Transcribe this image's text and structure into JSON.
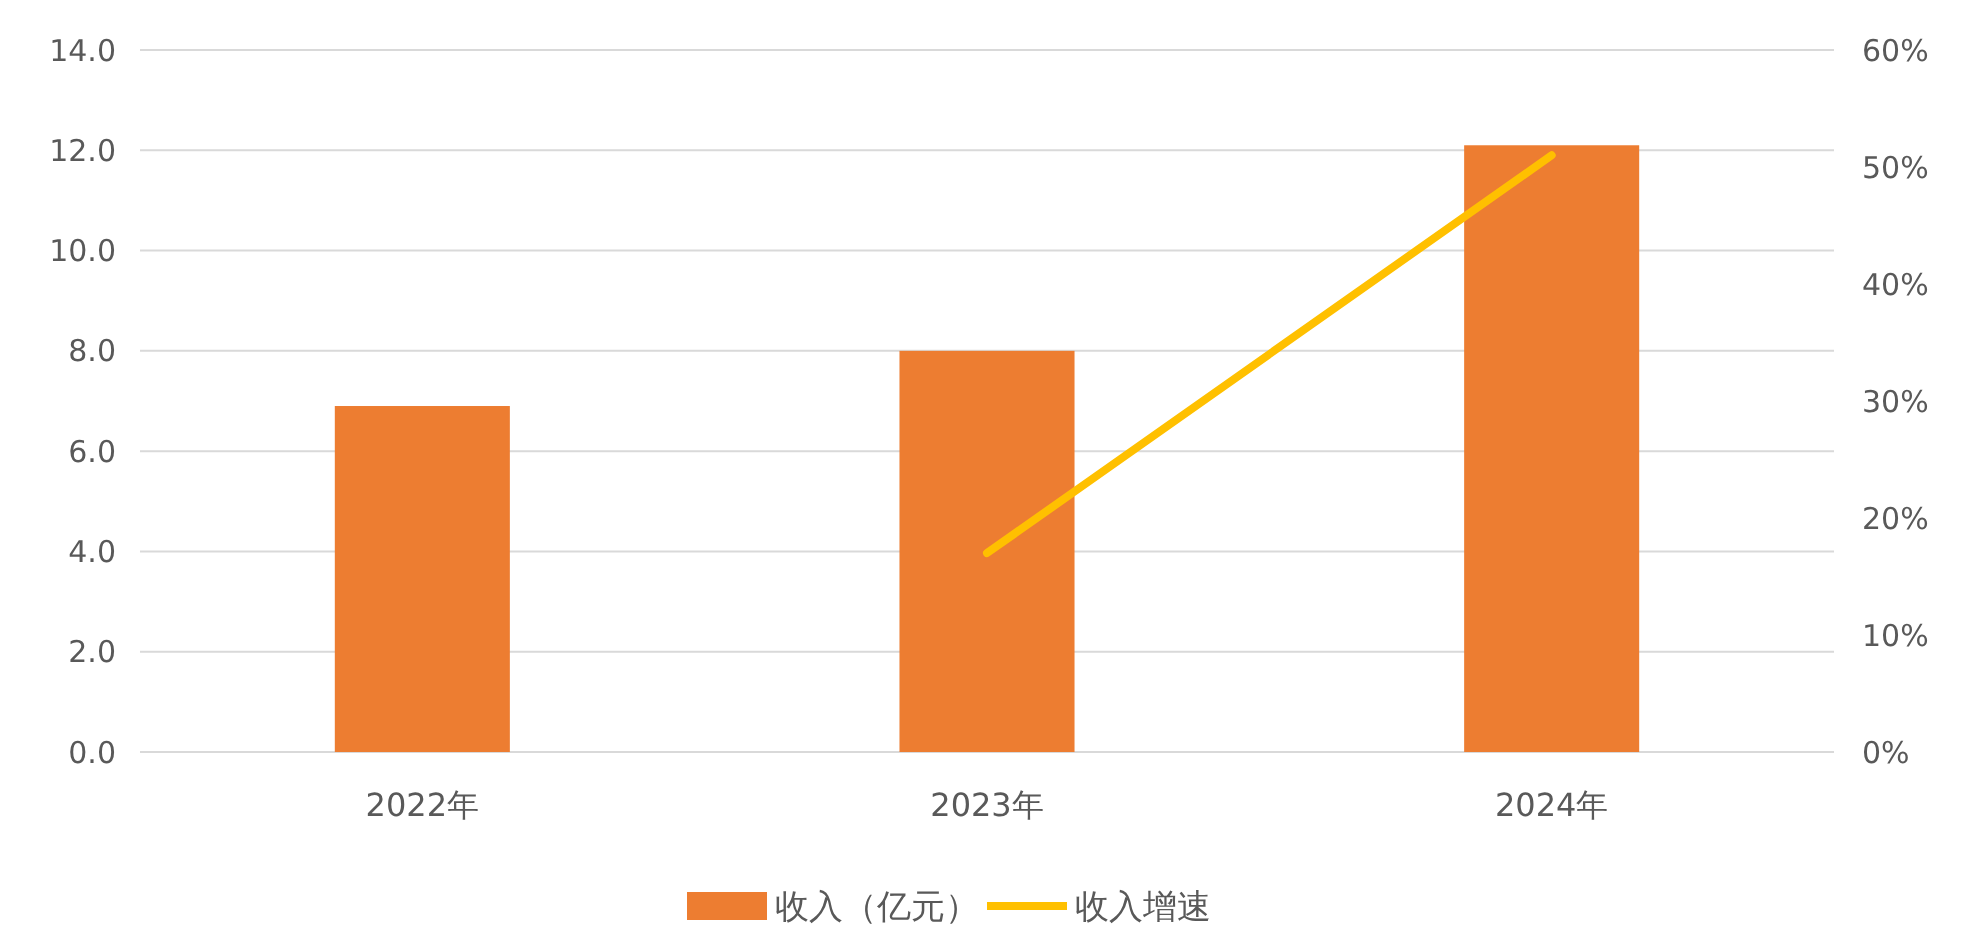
{
  "chart_data": {
    "type": "bar",
    "categories": [
      "2022年",
      "2023年",
      "2024年"
    ],
    "series": [
      {
        "name": "收入（亿元）",
        "color": "#ed7d31",
        "values": [
          6.9,
          8.0,
          12.1
        ]
      },
      {
        "name": "收入增速",
        "type": "line",
        "axis": "y2",
        "color": "#ffc000",
        "values": [
          null,
          17,
          51
        ]
      }
    ],
    "ylim": [
      0,
      14
    ],
    "yticks": [
      {
        "value": 0,
        "label": "0.0"
      },
      {
        "value": 2,
        "label": "2.0"
      },
      {
        "value": 4,
        "label": "4.0"
      },
      {
        "value": 6,
        "label": "6.0"
      },
      {
        "value": 8,
        "label": "8.0"
      },
      {
        "value": 10,
        "label": "10.0"
      },
      {
        "value": 12,
        "label": "12.0"
      },
      {
        "value": 14,
        "label": "14.0"
      }
    ],
    "y2lim": [
      0,
      60
    ],
    "y2ticks": [
      {
        "value": 0,
        "label": "0%"
      },
      {
        "value": 10,
        "label": "10%"
      },
      {
        "value": 20,
        "label": "20%"
      },
      {
        "value": 30,
        "label": "30%"
      },
      {
        "value": 40,
        "label": "40%"
      },
      {
        "value": 50,
        "label": "50%"
      },
      {
        "value": 60,
        "label": "60%"
      }
    ],
    "grid": "y",
    "legend": "bottom",
    "marker": "none",
    "line_style": "solid"
  }
}
